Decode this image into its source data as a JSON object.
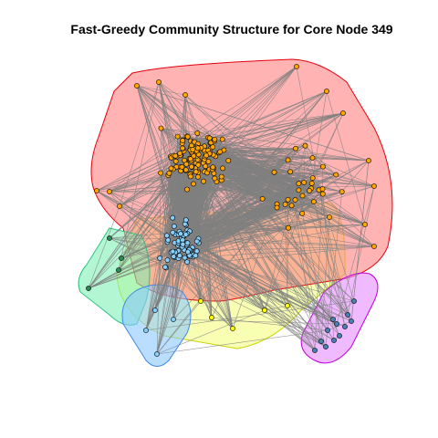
{
  "title": "Fast-Greedy Community Structure for Core Node 349",
  "communities": [
    {
      "id": "red",
      "fill": "#ff8080",
      "stroke": "#e8000b",
      "node_color": "#ffa500"
    },
    {
      "id": "green",
      "fill": "#80f0b8",
      "stroke": "#2ec27e",
      "node_color": "#2e8b57"
    },
    {
      "id": "blue",
      "fill": "#8cc8ff",
      "stroke": "#3f88e8",
      "node_color": "#87cefa"
    },
    {
      "id": "yellow",
      "fill": "#f4ff80",
      "stroke": "#c8d400",
      "node_color": "#ffff00"
    },
    {
      "id": "purple",
      "fill": "#e48cff",
      "stroke": "#c000e0",
      "node_color": "#4682b4"
    }
  ],
  "colors": {
    "edge": "#808080",
    "node_stroke": "#000000"
  }
}
